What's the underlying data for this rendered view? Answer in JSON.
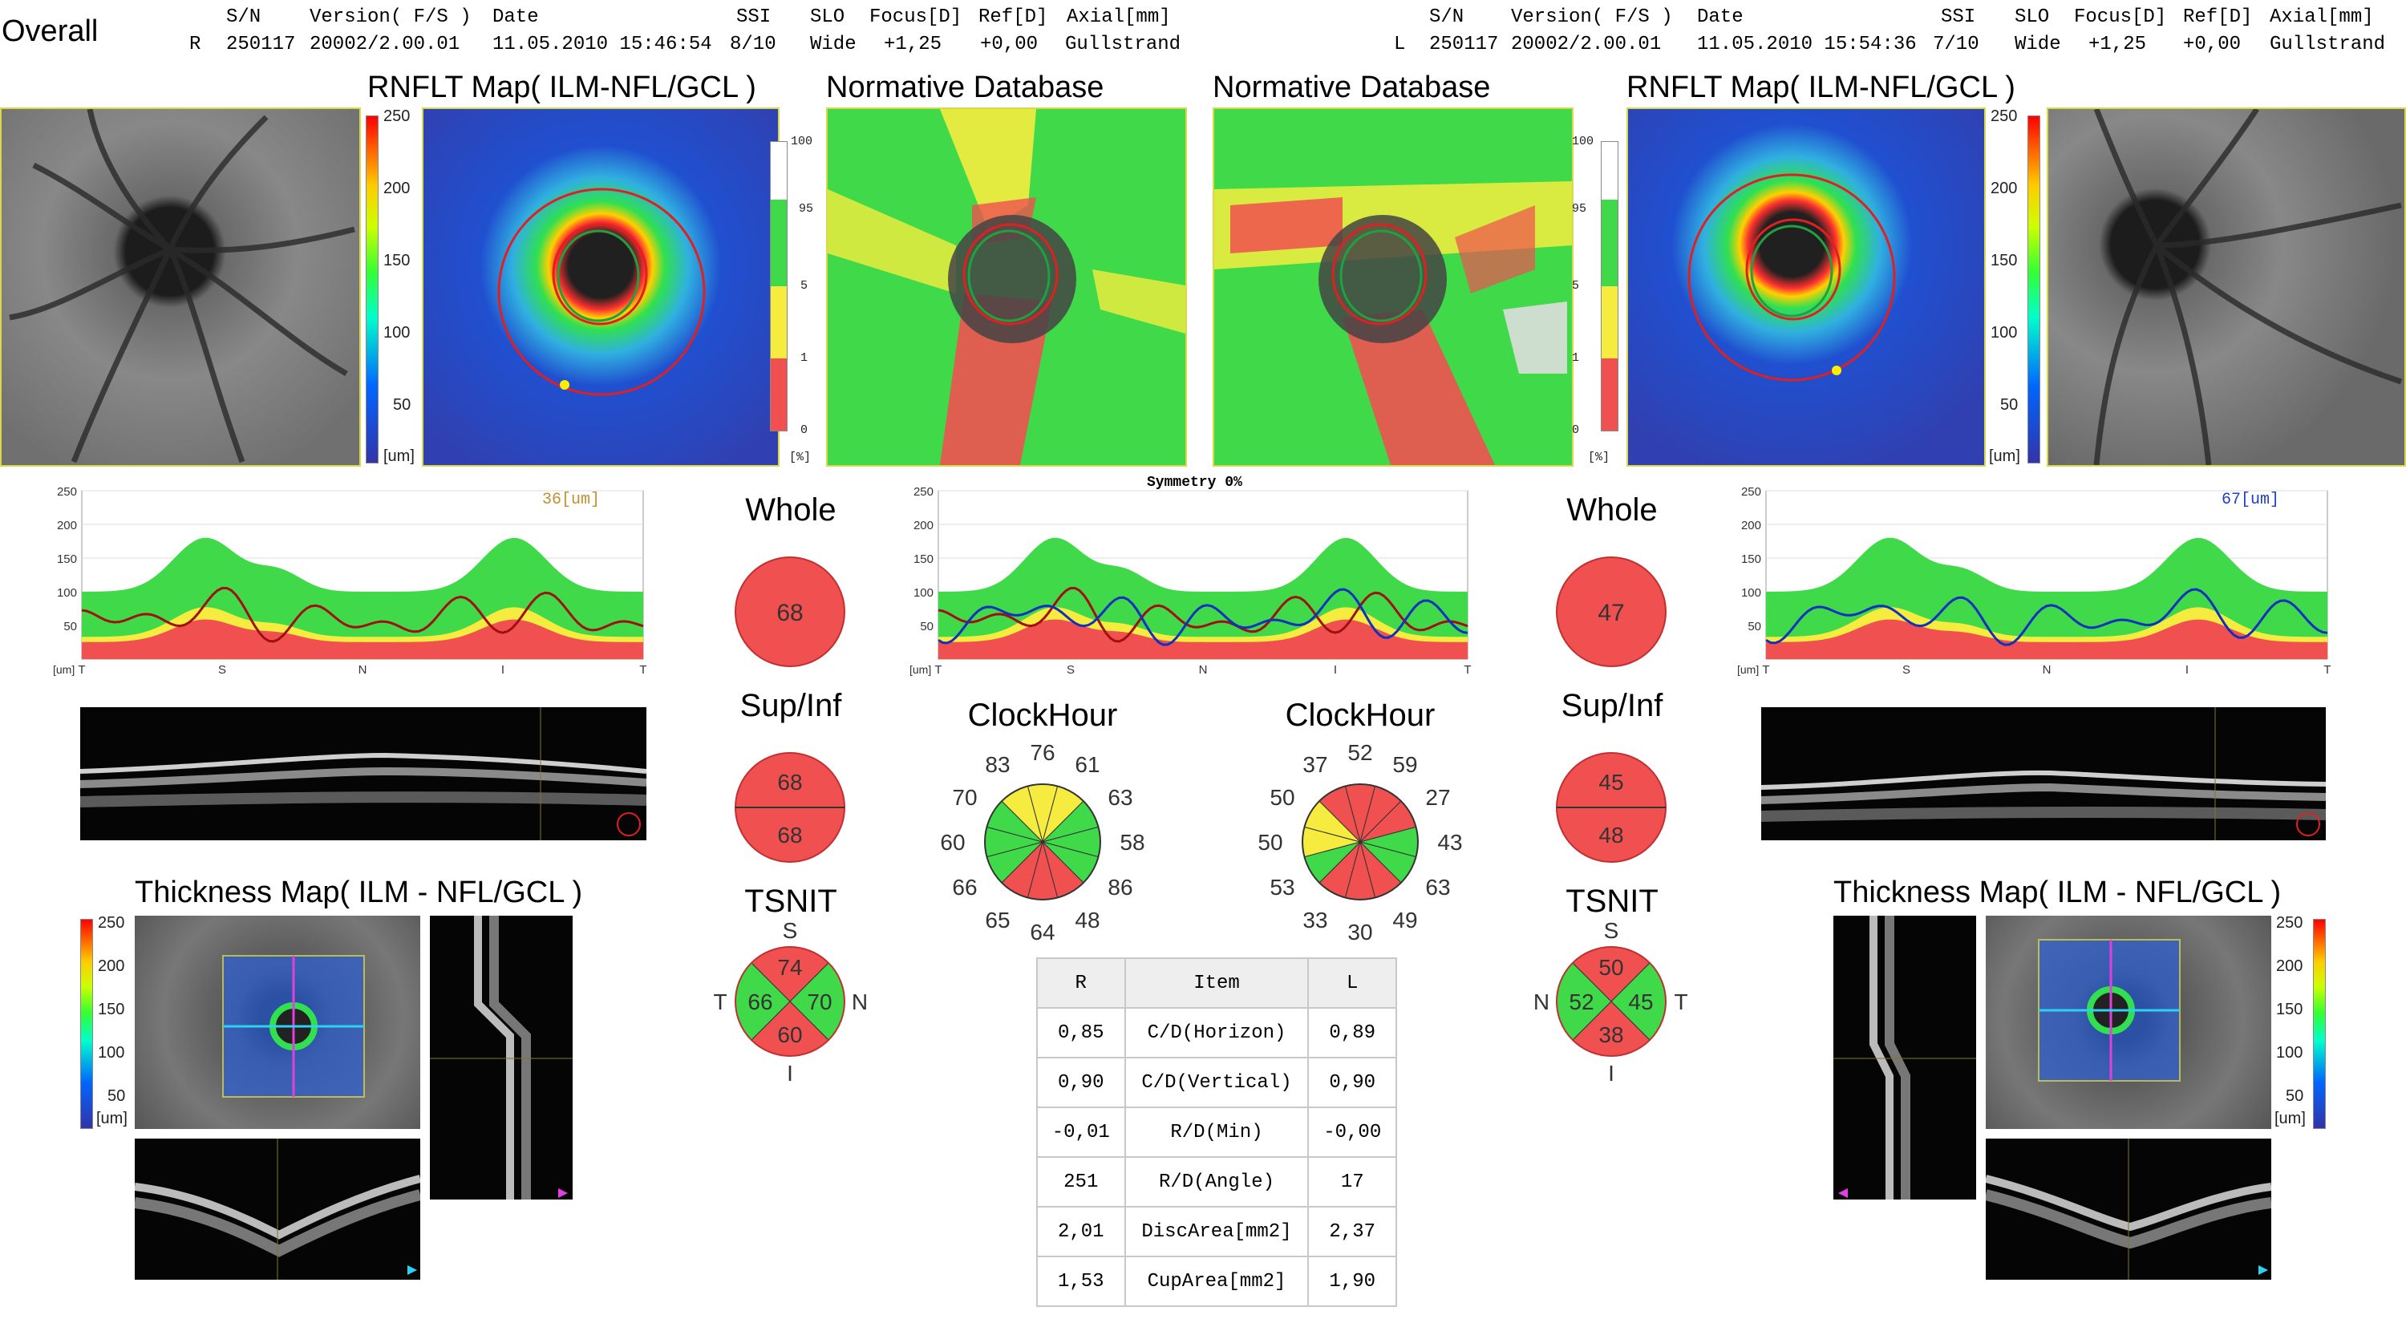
{
  "overall_label": "Overall",
  "header": {
    "columns": [
      "S/N",
      "Version( F/S )",
      "Date",
      "SSI",
      "SLO",
      "Focus[D]",
      "Ref[D]",
      "Axial[mm]"
    ],
    "right_eye": {
      "eye": "R",
      "sn": "250117",
      "version": "20002/2.00.01",
      "date": "11.05.2010 15:46:54",
      "ssi": "8/10",
      "slo": "Wide",
      "focus": "+1,25",
      "ref": "+0,00",
      "axial": "Gullstrand"
    },
    "left_eye": {
      "eye": "L",
      "sn": "250117",
      "version": "20002/2.00.01",
      "date": "11.05.2010 15:54:36",
      "ssi": "7/10",
      "slo": "Wide",
      "focus": "+1,25",
      "ref": "+0,00",
      "axial": "Gullstrand"
    }
  },
  "titles": {
    "rnflt_map": "RNFLT Map( ILM-NFL/GCL )",
    "normative_db": "Normative Database",
    "thickness_map": "Thickness Map( ILM - NFL/GCL )",
    "symmetry": "Symmetry 0%",
    "whole": "Whole",
    "sup_inf": "Sup/Inf",
    "tsnit": "TSNIT",
    "clockhour": "ClockHour"
  },
  "colorbar_ticks": [
    "250",
    "200",
    "150",
    "100",
    "50"
  ],
  "colorbar_unit": "[um]",
  "normative_ticks": [
    "100",
    "95",
    "5",
    "1",
    "0"
  ],
  "normative_unit": "[%]",
  "graph_axis": {
    "y_ticks": [
      "250",
      "200",
      "150",
      "100",
      "50"
    ],
    "x_ticks": [
      "T",
      "S",
      "N",
      "I",
      "T"
    ],
    "unit": "[um]"
  },
  "right": {
    "cursor_label": "36[um]",
    "whole": "68",
    "sup": "68",
    "inf": "68",
    "tsnit": {
      "s": "74",
      "t": "66",
      "n": "70",
      "i": "60",
      "label_s": "S",
      "label_t": "T",
      "label_n": "N",
      "label_i": "I"
    },
    "clock": [
      "76",
      "61",
      "63",
      "58",
      "86",
      "48",
      "64",
      "65",
      "66",
      "60",
      "70",
      "83"
    ]
  },
  "left": {
    "cursor_label": "67[um]",
    "whole": "47",
    "sup": "45",
    "inf": "48",
    "tsnit": {
      "s": "50",
      "t": "45",
      "n": "52",
      "i": "38",
      "label_s": "S",
      "label_t": "T",
      "label_n": "N",
      "label_i": "I"
    },
    "clock": [
      "52",
      "59",
      "27",
      "43",
      "63",
      "49",
      "30",
      "33",
      "53",
      "50",
      "50",
      "37"
    ]
  },
  "table": {
    "headers": [
      "R",
      "Item",
      "L"
    ],
    "rows": [
      [
        "0,85",
        "C/D(Horizon)",
        "0,89"
      ],
      [
        "0,90",
        "C/D(Vertical)",
        "0,90"
      ],
      [
        "-0,01",
        "R/D(Min)",
        "-0,00"
      ],
      [
        "251",
        "R/D(Angle)",
        "17"
      ],
      [
        "2,01",
        "DiscArea[mm2]",
        "2,37"
      ],
      [
        "1,53",
        "CupArea[mm2]",
        "1,90"
      ]
    ]
  },
  "colors": {
    "red": "#f05050",
    "green": "#3fd94a",
    "yellow": "#f5ec3f",
    "right_profile": "#a01010",
    "left_profile": "#1030c0",
    "accent_magenta": "#e040e0",
    "accent_cyan": "#30d0f0"
  }
}
